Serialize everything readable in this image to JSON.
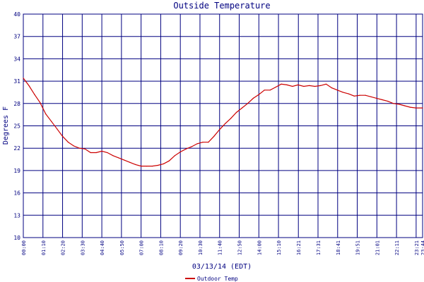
{
  "chart_data": {
    "type": "line",
    "title": "Outside Temperature",
    "xlabel": "03/13/14 (EDT)",
    "ylabel": "Degrees F",
    "ylim": [
      10,
      40
    ],
    "yticks": [
      10,
      13,
      16,
      19,
      22,
      25,
      28,
      31,
      34,
      37,
      40
    ],
    "xlim": [
      "00:00",
      "23:44"
    ],
    "xticks": [
      "00:00",
      "01:10",
      "02:20",
      "03:30",
      "04:40",
      "05:50",
      "07:00",
      "08:10",
      "09:20",
      "10:30",
      "11:40",
      "12:50",
      "14:00",
      "15:10",
      "16:21",
      "17:31",
      "18:41",
      "19:51",
      "21:01",
      "22:11",
      "23:21",
      "23:44"
    ],
    "grid": true,
    "legend": "bottom-left",
    "colors": {
      "series": "#cc0000",
      "grid": "#000080",
      "text": "#000080",
      "background": "#ffffff"
    },
    "series": [
      {
        "name": "Outdoor Temp",
        "x": [
          "00:00",
          "00:20",
          "00:40",
          "01:00",
          "01:20",
          "01:40",
          "02:00",
          "02:20",
          "02:40",
          "03:00",
          "03:20",
          "03:40",
          "04:00",
          "04:20",
          "04:40",
          "05:00",
          "05:20",
          "05:40",
          "06:00",
          "06:20",
          "06:40",
          "07:00",
          "07:20",
          "07:40",
          "08:00",
          "08:20",
          "08:40",
          "09:00",
          "09:20",
          "09:40",
          "10:00",
          "10:20",
          "10:40",
          "11:00",
          "11:20",
          "11:40",
          "12:00",
          "12:20",
          "12:40",
          "13:00",
          "13:20",
          "13:40",
          "14:00",
          "14:20",
          "14:40",
          "15:00",
          "15:20",
          "15:40",
          "16:00",
          "16:20",
          "16:40",
          "17:00",
          "17:20",
          "17:40",
          "18:00",
          "18:20",
          "18:40",
          "19:00",
          "19:20",
          "19:40",
          "20:00",
          "20:20",
          "20:40",
          "21:00",
          "21:20",
          "21:40",
          "22:00",
          "22:20",
          "22:40",
          "23:00",
          "23:20",
          "23:44"
        ],
        "values": [
          31.4,
          30.4,
          29.2,
          28.1,
          26.6,
          25.6,
          24.6,
          23.6,
          22.8,
          22.3,
          22.0,
          21.9,
          21.4,
          21.4,
          21.6,
          21.4,
          21.0,
          20.7,
          20.4,
          20.1,
          19.8,
          19.6,
          19.6,
          19.6,
          19.7,
          19.9,
          20.3,
          21.0,
          21.5,
          21.9,
          22.2,
          22.6,
          22.8,
          22.8,
          23.6,
          24.5,
          25.3,
          26.0,
          26.8,
          27.4,
          28.0,
          28.7,
          29.2,
          29.8,
          29.8,
          30.2,
          30.6,
          30.5,
          30.3,
          30.5,
          30.3,
          30.4,
          30.3,
          30.4,
          30.6,
          30.1,
          29.8,
          29.5,
          29.3,
          29.0,
          29.1,
          29.1,
          28.9,
          28.7,
          28.5,
          28.3,
          28.0,
          27.9,
          27.7,
          27.5,
          27.4,
          27.4
        ]
      }
    ]
  }
}
